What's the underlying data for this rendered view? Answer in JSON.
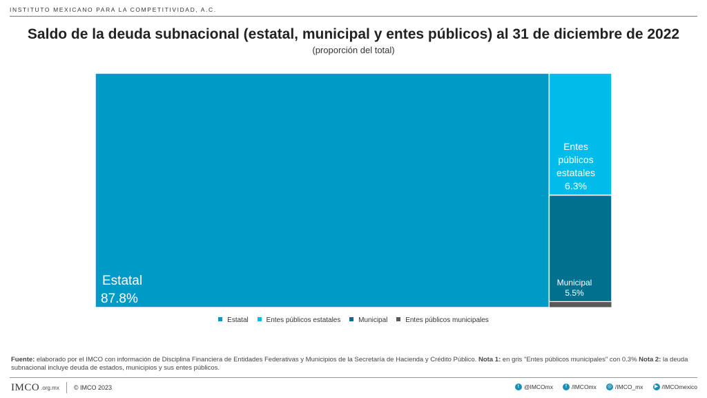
{
  "header": {
    "org_name": "INSTITUTO MEXICANO PARA LA COMPETITIVIDAD, A.C.",
    "title": "Saldo de la deuda subnacional (estatal, municipal y entes públicos) al 31 de diciembre de 2022",
    "subtitle": "(proporción del total)"
  },
  "chart_data": {
    "type": "treemap",
    "unit": "%",
    "items": [
      {
        "name": "Estatal",
        "value": 87.8,
        "label": "87.8%",
        "color": "#009AC7"
      },
      {
        "name": "Entes públicos estatales",
        "value": 6.3,
        "label": "6.3%",
        "color": "#00BCEB"
      },
      {
        "name": "Municipal",
        "value": 5.5,
        "label": "5.5%",
        "color": "#00708F"
      },
      {
        "name": "Entes públicos municipales",
        "value": 0.3,
        "label": "",
        "color": "#595959"
      }
    ],
    "legend": [
      "Estatal",
      "Entes públicos estatales",
      "Municipal",
      "Entes públicos municipales"
    ],
    "legend_placement": "bottom"
  },
  "labels": {
    "estatal": "Estatal",
    "estatal_pct": "87.8%",
    "entes_line1": "Entes",
    "entes_line2": "públicos",
    "entes_line3": "estatales",
    "entes_pct": "6.3%",
    "municipal": "Municipal",
    "municipal_pct": "5.5%"
  },
  "notes": {
    "fuente_label": "Fuente:",
    "fuente_text": " elaborado por el IMCO con información de Disciplina Financiera de Entidades Federativas y Municipios de la Secretaría de Hacienda y Crédito Público. ",
    "nota1_label": "Nota 1:",
    "nota1_text": " en gris \"Entes públicos municipales\" con 0.3% ",
    "nota2_label": "Nota 2:",
    "nota2_text": " la deuda subnacional incluye deuda de estados, municipios y sus entes públicos."
  },
  "footer": {
    "logo": "IMCO",
    "domain": ".org.mx",
    "copyright": "© IMCO 2023",
    "socials": [
      {
        "icon": "twitter-icon",
        "glyph": "t",
        "handle": "@IMCOmx"
      },
      {
        "icon": "facebook-icon",
        "glyph": "f",
        "handle": "/IMCOmx"
      },
      {
        "icon": "instagram-icon",
        "glyph": "◎",
        "handle": "/IMCO_mx"
      },
      {
        "icon": "youtube-icon",
        "glyph": "▶",
        "handle": "/IMCOmexico"
      }
    ]
  }
}
